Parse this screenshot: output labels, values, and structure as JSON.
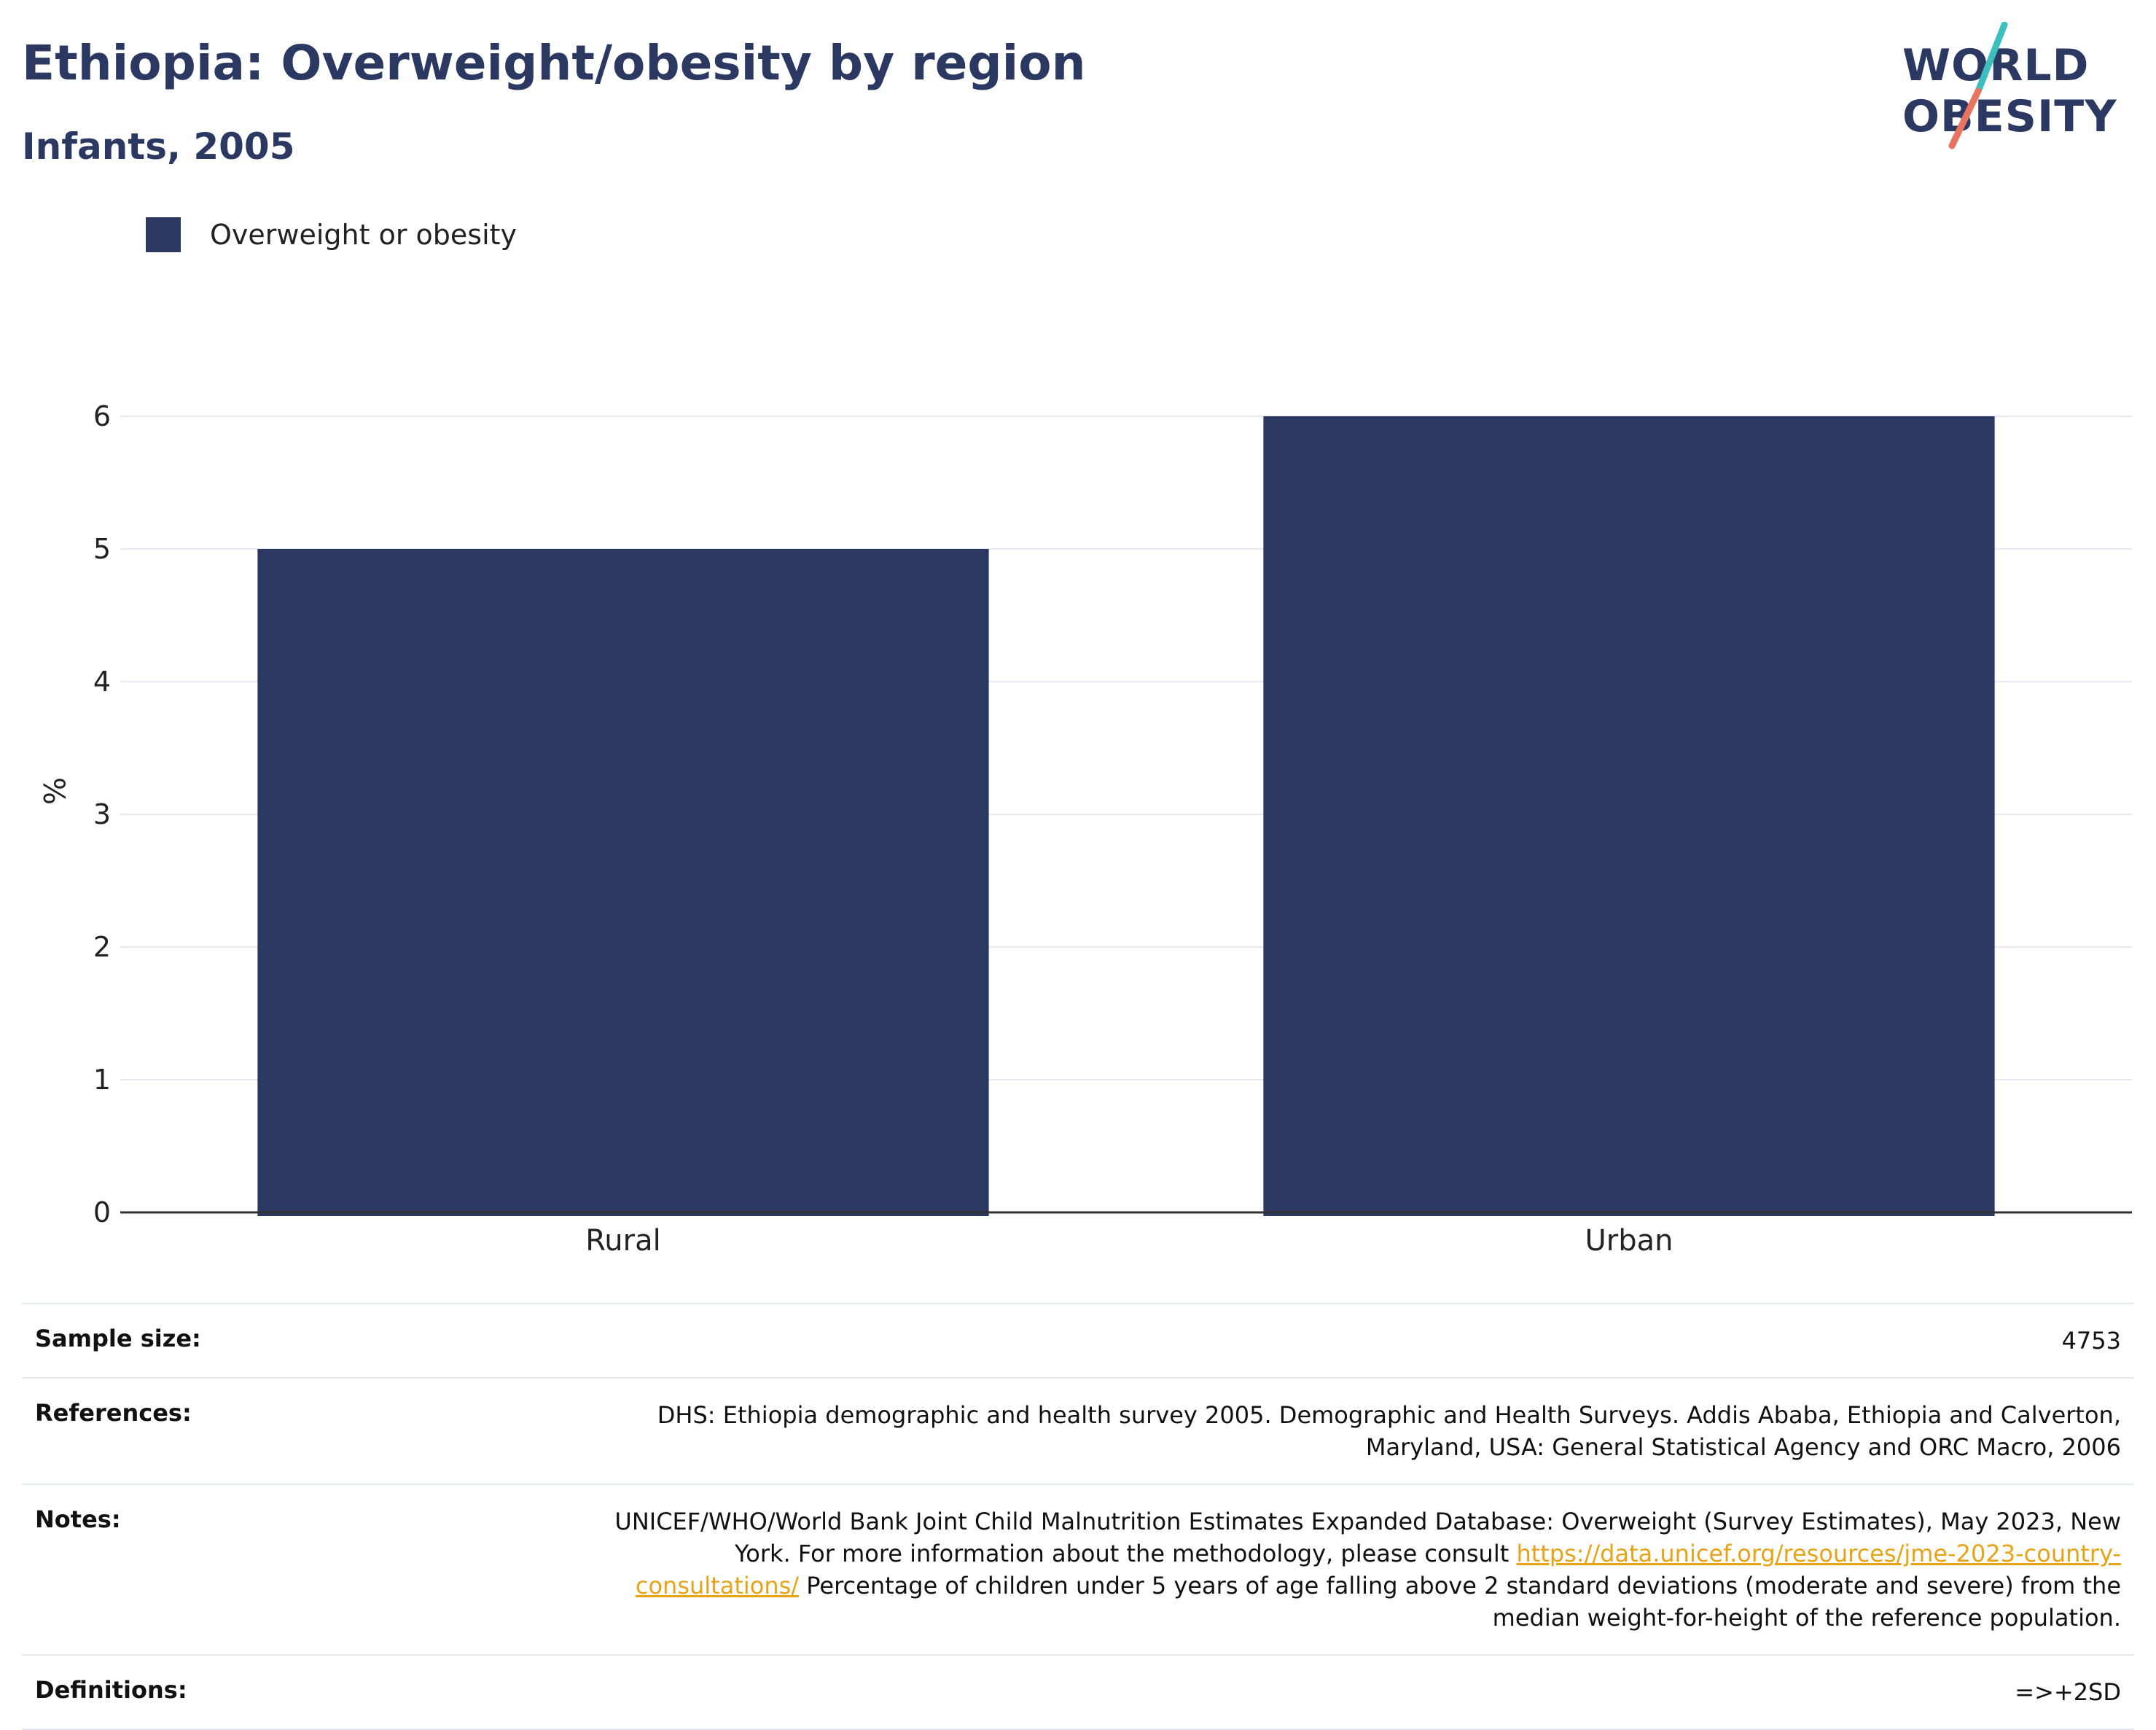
{
  "title": "Ethiopia: Overweight/obesity by region",
  "subtitle": "Infants, 2005",
  "logo": {
    "line1": "WORLD",
    "line2": "OBESITY",
    "accent1": "#3ebfbf",
    "accent2": "#e8735f"
  },
  "colors": {
    "bar": "#2b3862",
    "title": "#2b3862",
    "link": "#e8a317",
    "grid": "#e6e9ef"
  },
  "chart_data": {
    "type": "bar",
    "categories": [
      "Rural",
      "Urban"
    ],
    "series": [
      {
        "name": "Overweight or obesity",
        "values": [
          5.0,
          6.0
        ]
      }
    ],
    "ylabel": "%",
    "ylim": [
      0,
      6.5
    ],
    "yticks": [
      0,
      1,
      2,
      3,
      4,
      5,
      6
    ],
    "grid": true,
    "legend_position": "top-left"
  },
  "meta": {
    "sample_size_label": "Sample size:",
    "sample_size_value": "4753",
    "references_label": "References:",
    "references_value": "DHS: Ethiopia demographic and health survey 2005. Demographic and Health Surveys. Addis Ababa, Ethiopia and Calverton, Maryland, USA: General Statistical Agency and ORC Macro, 2006",
    "notes_label": "Notes:",
    "notes_text1": "UNICEF/WHO/World Bank Joint Child Malnutrition Estimates Expanded Database: Overweight (Survey Estimates), May 2023, New York. For more information about the methodology, please consult ",
    "notes_link": "https://data.unicef.org/resources/jme-2023-country-consultations/",
    "notes_text2": " Percentage of children under 5 years of age falling above 2 standard deviations (moderate and severe) from the median weight-for-height of the reference population.",
    "definitions_label": "Definitions:",
    "definitions_value": "=>+2SD"
  }
}
